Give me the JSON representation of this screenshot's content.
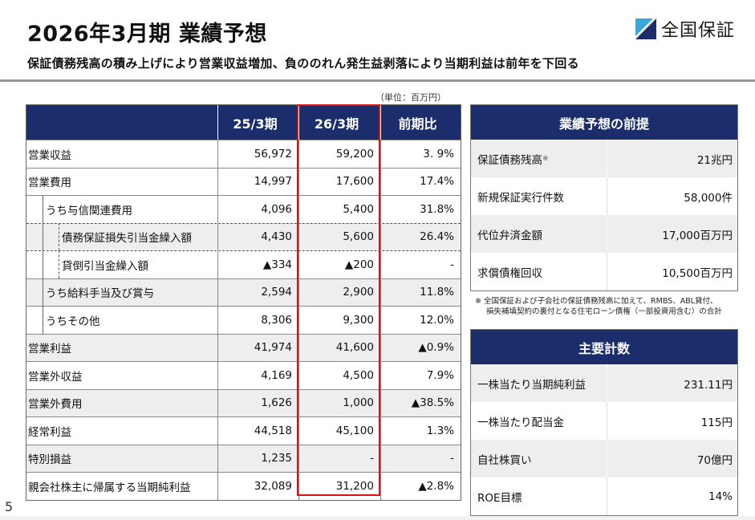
{
  "title": "2026年3月期 業績予想",
  "logo": {
    "text": "全国保証",
    "colors": {
      "dark": "#1c2d6b",
      "light": "#3aa7d8"
    }
  },
  "subtitle": "保証債務残高の積み上げにより営業収益増加、負ののれん発生益剥落により当期利益は前年を下回る",
  "unit": "（単位：百万円）",
  "table": {
    "headers": [
      "",
      "25/3期",
      "26/3期",
      "前期比"
    ],
    "rows": [
      {
        "label": "営業収益",
        "v1": "56,972",
        "v2": "59,200",
        "v3": "3. 9%"
      },
      {
        "label": "営業費用",
        "v1": "14,997",
        "v2": "17,600",
        "v3": "17.4%"
      },
      {
        "label": "うち与信関連費用",
        "v1": "4,096",
        "v2": "5,400",
        "v3": "31.8%"
      },
      {
        "label": "債務保証損失引当金繰入額",
        "v1": "4,430",
        "v2": "5,600",
        "v3": "26.4%"
      },
      {
        "label": "貸倒引当金繰入額",
        "v1": "▲334",
        "v2": "▲200",
        "v3": "-"
      },
      {
        "label": "うち給料手当及び賞与",
        "v1": "2,594",
        "v2": "2,900",
        "v3": "11.8%"
      },
      {
        "label": "うちその他",
        "v1": "8,306",
        "v2": "9,300",
        "v3": "12.0%"
      },
      {
        "label": "営業利益",
        "v1": "41,974",
        "v2": "41,600",
        "v3": "▲0.9%"
      },
      {
        "label": "営業外収益",
        "v1": "4,169",
        "v2": "4,500",
        "v3": "7.9%"
      },
      {
        "label": "営業外費用",
        "v1": "1,626",
        "v2": "1,000",
        "v3": "▲38.5%"
      },
      {
        "label": "経常利益",
        "v1": "44,518",
        "v2": "45,100",
        "v3": "1.3%"
      },
      {
        "label": "特別損益",
        "v1": "1,235",
        "v2": "-",
        "v3": "-"
      },
      {
        "label": "親会社株主に帰属する当期純利益",
        "v1": "32,089",
        "v2": "31,200",
        "v3": "▲2.8%"
      }
    ]
  },
  "assumptions": {
    "title": "業績予想の前提",
    "rows": [
      {
        "label": "保証債務残高",
        "mark": "※",
        "value": "21兆円"
      },
      {
        "label": "新規保証実行件数",
        "value": "58,000件"
      },
      {
        "label": "代位弁済金額",
        "value": "17,000百万円"
      },
      {
        "label": "求償債権回収",
        "value": "10,500百万円"
      }
    ],
    "note_line1": "※ 全国保証および子会社の保証債務残高に加えて、RMBS、ABL貸付、",
    "note_line2": "損失補填契約の裏付となる住宅ローン債権（一部投資用含む）の合計"
  },
  "metrics": {
    "title": "主要計数",
    "rows": [
      {
        "label": "一株当たり当期純利益",
        "value": "231.11円"
      },
      {
        "label": "一株当たり配当金",
        "value": "115円"
      },
      {
        "label": "自社株買い",
        "value": "70億円"
      },
      {
        "label": "ROE目標",
        "value": "14%"
      }
    ]
  },
  "page_number": "5"
}
